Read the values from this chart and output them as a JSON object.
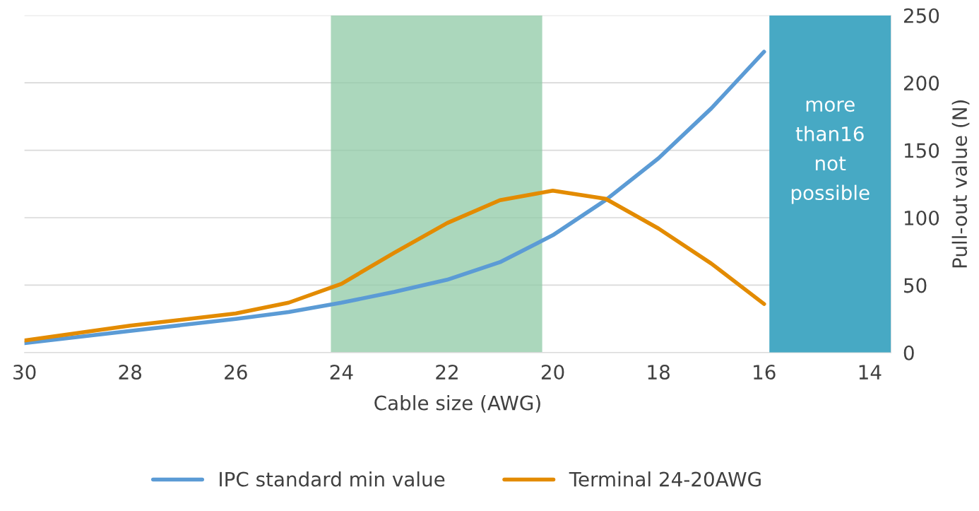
{
  "chart_data": {
    "type": "line",
    "xlabel": "Cable size (AWG)",
    "ylabel": "Pull-out value (N)",
    "xlim": [
      30,
      13.6
    ],
    "xticks": [
      30,
      28,
      26,
      24,
      22,
      20,
      18,
      16,
      14
    ],
    "ylim": [
      0,
      250
    ],
    "yticks": [
      0,
      50,
      100,
      150,
      200,
      250
    ],
    "grid": "y",
    "legend": "bottom",
    "marker": "none",
    "line_style": "solid",
    "series": [
      {
        "name": "IPC standard min value",
        "color": "#5b9bd5",
        "x": [
          30,
          28,
          26,
          25,
          24,
          23,
          22,
          21,
          20,
          19,
          18,
          17,
          16
        ],
        "values": [
          7,
          16,
          25,
          30,
          37,
          45,
          54,
          67,
          87,
          113,
          144,
          181,
          223
        ]
      },
      {
        "name": "Terminal 24-20AWG",
        "color": "#e38b00",
        "x": [
          30,
          28,
          26,
          25,
          24,
          23,
          22,
          21,
          20,
          19,
          18,
          17,
          16
        ],
        "values": [
          9,
          20,
          29,
          37,
          51,
          74,
          96,
          113,
          120,
          114,
          92,
          66,
          36
        ]
      }
    ],
    "bands": [
      {
        "axis": "x",
        "from": 24.2,
        "to": 20.2,
        "label": null,
        "color": "#8fcaa5"
      },
      {
        "axis": "x",
        "from": 15.9,
        "to": 13.6,
        "label": "more than16 not possible",
        "color": "#47a9c4"
      }
    ]
  }
}
